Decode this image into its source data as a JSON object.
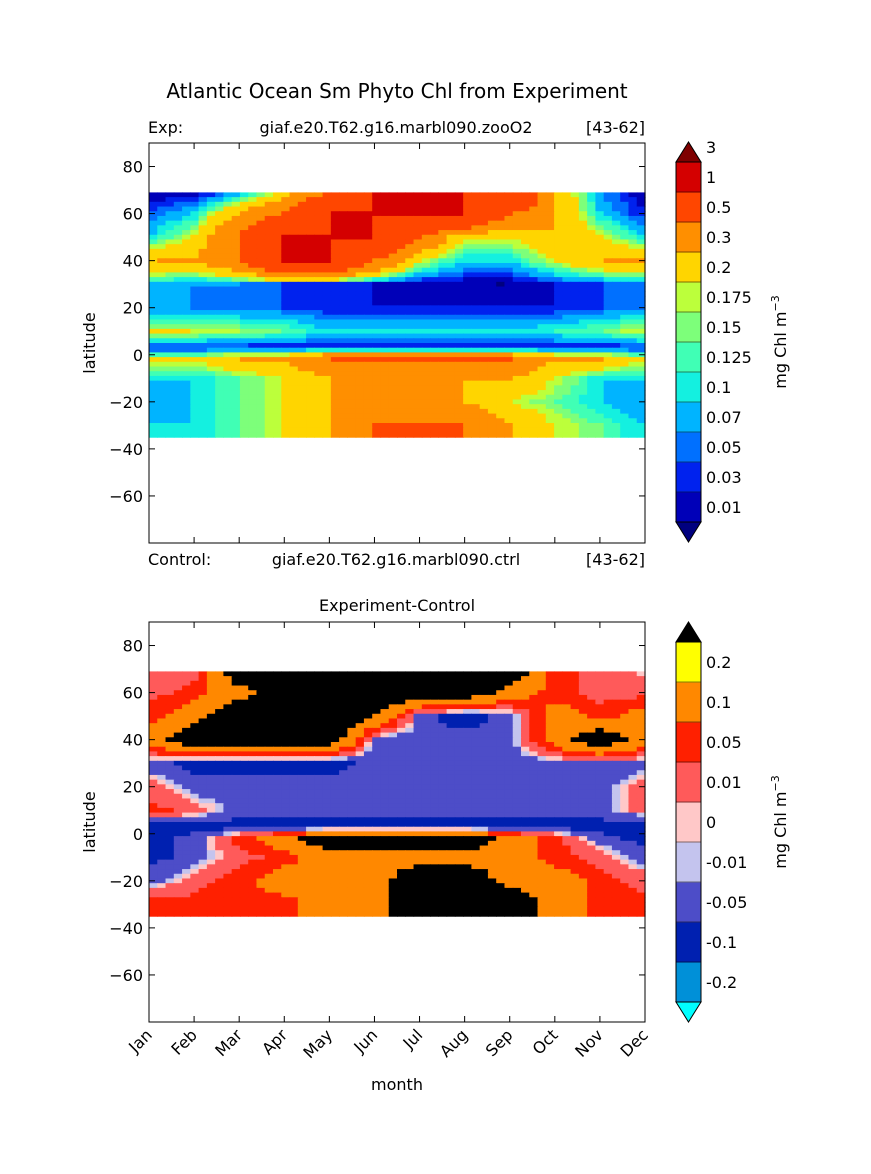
{
  "figure": {
    "title": "Atlantic Ocean Sm Phyto Chl from Experiment",
    "exp_label": "Exp:",
    "exp_name": "giaf.e20.T62.g16.marbl090.zooO2",
    "exp_years": "[43-62]",
    "ctrl_label": "Control:",
    "ctrl_name": "giaf.e20.T62.g16.marbl090.ctrl",
    "ctrl_years": "[43-62]",
    "diff_title": "Experiment-Control"
  },
  "chart_data": [
    {
      "type": "heatmap",
      "title": "Atlantic Ocean Sm Phyto Chl from Experiment",
      "xlabel": "",
      "ylabel": "latitude",
      "x": [
        "Jan",
        "Feb",
        "Mar",
        "Apr",
        "May",
        "Jun",
        "Jul",
        "Aug",
        "Sep",
        "Oct",
        "Nov",
        "Dec"
      ],
      "xlim": [
        0,
        11
      ],
      "ylim": [
        -80,
        90
      ],
      "yticks": [
        80,
        60,
        40,
        20,
        0,
        -20,
        -40,
        -60
      ],
      "data_lat_range": [
        -35,
        69
      ],
      "colorbar": {
        "label": "mg Chl m",
        "label_exponent": "−3",
        "levels": [
          "0.01",
          "0.03",
          "0.05",
          "0.07",
          "0.1",
          "0.125",
          "0.15",
          "0.175",
          "0.2",
          "0.3",
          "0.5",
          "1",
          "3"
        ],
        "colors": [
          "#00007f",
          "#0000b8",
          "#0022ee",
          "#0070ff",
          "#00b4ff",
          "#14f0e0",
          "#40ffb5",
          "#7dff7a",
          "#bcff3b",
          "#ffd500",
          "#ff8f00",
          "#ff4600",
          "#d40000",
          "#7f0000"
        ],
        "extend": "both"
      },
      "field_rows": [
        {
          "lat": 69,
          "values": [
            0.01,
            0.01,
            0.07,
            0.2,
            0.5,
            1,
            1,
            1,
            1,
            0.3,
            0.07,
            0.01
          ]
        },
        {
          "lat": 60,
          "values": [
            0.05,
            0.1,
            0.3,
            0.5,
            1,
            1,
            1,
            1,
            0.5,
            0.3,
            0.1,
            0.03
          ]
        },
        {
          "lat": 50,
          "values": [
            0.1,
            0.2,
            0.5,
            1,
            1,
            1,
            0.5,
            0.2,
            0.2,
            0.3,
            0.2,
            0.1
          ]
        },
        {
          "lat": 40,
          "values": [
            0.3,
            0.3,
            0.5,
            1,
            1,
            0.5,
            0.2,
            0.1,
            0.1,
            0.2,
            0.3,
            0.3
          ]
        },
        {
          "lat": 30,
          "values": [
            0.1,
            0.07,
            0.07,
            0.05,
            0.03,
            0.03,
            0.01,
            0.01,
            0.01,
            0.03,
            0.05,
            0.07
          ]
        },
        {
          "lat": 20,
          "values": [
            0.07,
            0.07,
            0.05,
            0.05,
            0.03,
            0.03,
            0.03,
            0.03,
            0.03,
            0.03,
            0.05,
            0.05
          ]
        },
        {
          "lat": 10,
          "values": [
            0.2,
            0.2,
            0.175,
            0.15,
            0.1,
            0.1,
            0.1,
            0.1,
            0.1,
            0.125,
            0.15,
            0.2
          ]
        },
        {
          "lat": 3,
          "values": [
            0.03,
            0.03,
            0.03,
            0.03,
            0.03,
            0.03,
            0.03,
            0.03,
            0.03,
            0.03,
            0.03,
            0.03
          ]
        },
        {
          "lat": -2,
          "values": [
            0.2,
            0.2,
            0.3,
            0.3,
            0.5,
            0.5,
            0.5,
            0.5,
            0.5,
            0.3,
            0.3,
            0.2
          ]
        },
        {
          "lat": -10,
          "values": [
            0.1,
            0.1,
            0.15,
            0.2,
            0.3,
            0.3,
            0.3,
            0.3,
            0.3,
            0.2,
            0.1,
            0.1
          ]
        },
        {
          "lat": -20,
          "values": [
            0.07,
            0.1,
            0.15,
            0.2,
            0.3,
            0.3,
            0.3,
            0.3,
            0.2,
            0.15,
            0.1,
            0.07
          ]
        },
        {
          "lat": -30,
          "values": [
            0.1,
            0.1,
            0.15,
            0.2,
            0.3,
            0.5,
            0.5,
            0.5,
            0.3,
            0.2,
            0.15,
            0.1
          ]
        }
      ]
    },
    {
      "type": "heatmap",
      "title": "Experiment-Control",
      "xlabel": "month",
      "ylabel": "latitude",
      "x": [
        "Jan",
        "Feb",
        "Mar",
        "Apr",
        "May",
        "Jun",
        "Jul",
        "Aug",
        "Sep",
        "Oct",
        "Nov",
        "Dec"
      ],
      "xlim": [
        0,
        11
      ],
      "ylim": [
        -80,
        90
      ],
      "yticks": [
        80,
        60,
        40,
        20,
        0,
        -20,
        -40,
        -60
      ],
      "data_lat_range": [
        -35,
        69
      ],
      "colorbar": {
        "label": "mg Chl m",
        "label_exponent": "−3",
        "levels": [
          "-0.2",
          "-0.1",
          "-0.05",
          "-0.01",
          "0",
          "0.01",
          "0.05",
          "0.1",
          "0.2"
        ],
        "colors": [
          "#00ffff",
          "#0090d8",
          "#0020b0",
          "#4d4dc8",
          "#c4c4ee",
          "#ffc8c8",
          "#ff5a5a",
          "#ff2000",
          "#ff8800",
          "#ffff00",
          "#000000"
        ],
        "extend": "both"
      },
      "field_rows": [
        {
          "lat": 69,
          "values": [
            0.005,
            0.03,
            0.3,
            0.3,
            0.3,
            0.3,
            0.3,
            0.3,
            0.3,
            0.07,
            0.03,
            0.005
          ]
        },
        {
          "lat": 60,
          "values": [
            0.03,
            0.07,
            0.15,
            0.3,
            0.3,
            0.3,
            0.3,
            0.3,
            0.15,
            0.07,
            0.03,
            0.03
          ]
        },
        {
          "lat": 50,
          "values": [
            0.07,
            0.15,
            0.3,
            0.3,
            0.3,
            0.2,
            -0.03,
            -0.08,
            -0.03,
            0.15,
            0.07,
            0.15
          ]
        },
        {
          "lat": 40,
          "values": [
            0.15,
            0.3,
            0.3,
            0.3,
            0.3,
            -0.03,
            -0.03,
            -0.03,
            -0.03,
            0.15,
            0.3,
            0.15
          ]
        },
        {
          "lat": 30,
          "values": [
            -0.03,
            -0.07,
            -0.07,
            -0.07,
            -0.07,
            -0.03,
            -0.03,
            -0.03,
            -0.03,
            -0.03,
            -0.03,
            -0.03
          ]
        },
        {
          "lat": 20,
          "values": [
            0.03,
            -0.03,
            -0.03,
            -0.03,
            -0.03,
            -0.03,
            -0.03,
            -0.03,
            -0.03,
            -0.03,
            -0.03,
            0.03
          ]
        },
        {
          "lat": 10,
          "values": [
            0.07,
            0.03,
            -0.03,
            -0.03,
            -0.03,
            -0.03,
            -0.03,
            -0.03,
            -0.03,
            -0.03,
            -0.03,
            0.03
          ]
        },
        {
          "lat": 3,
          "values": [
            -0.07,
            -0.07,
            -0.07,
            -0.07,
            -0.07,
            -0.07,
            -0.07,
            -0.07,
            -0.07,
            -0.07,
            -0.07,
            -0.07
          ]
        },
        {
          "lat": -2,
          "values": [
            -0.07,
            -0.03,
            0.07,
            0.15,
            0.3,
            0.3,
            0.3,
            0.3,
            0.15,
            0.07,
            -0.03,
            -0.07
          ]
        },
        {
          "lat": -10,
          "values": [
            -0.07,
            -0.03,
            0.03,
            0.07,
            0.15,
            0.15,
            0.15,
            0.15,
            0.15,
            0.07,
            0.03,
            -0.03
          ]
        },
        {
          "lat": -20,
          "values": [
            -0.03,
            0.03,
            0.07,
            0.15,
            0.15,
            0.15,
            0.3,
            0.3,
            0.15,
            0.15,
            0.07,
            0.03
          ]
        },
        {
          "lat": -30,
          "values": [
            0.07,
            0.07,
            0.07,
            0.07,
            0.15,
            0.15,
            0.3,
            0.3,
            0.3,
            0.15,
            0.07,
            0.07
          ]
        }
      ]
    }
  ]
}
